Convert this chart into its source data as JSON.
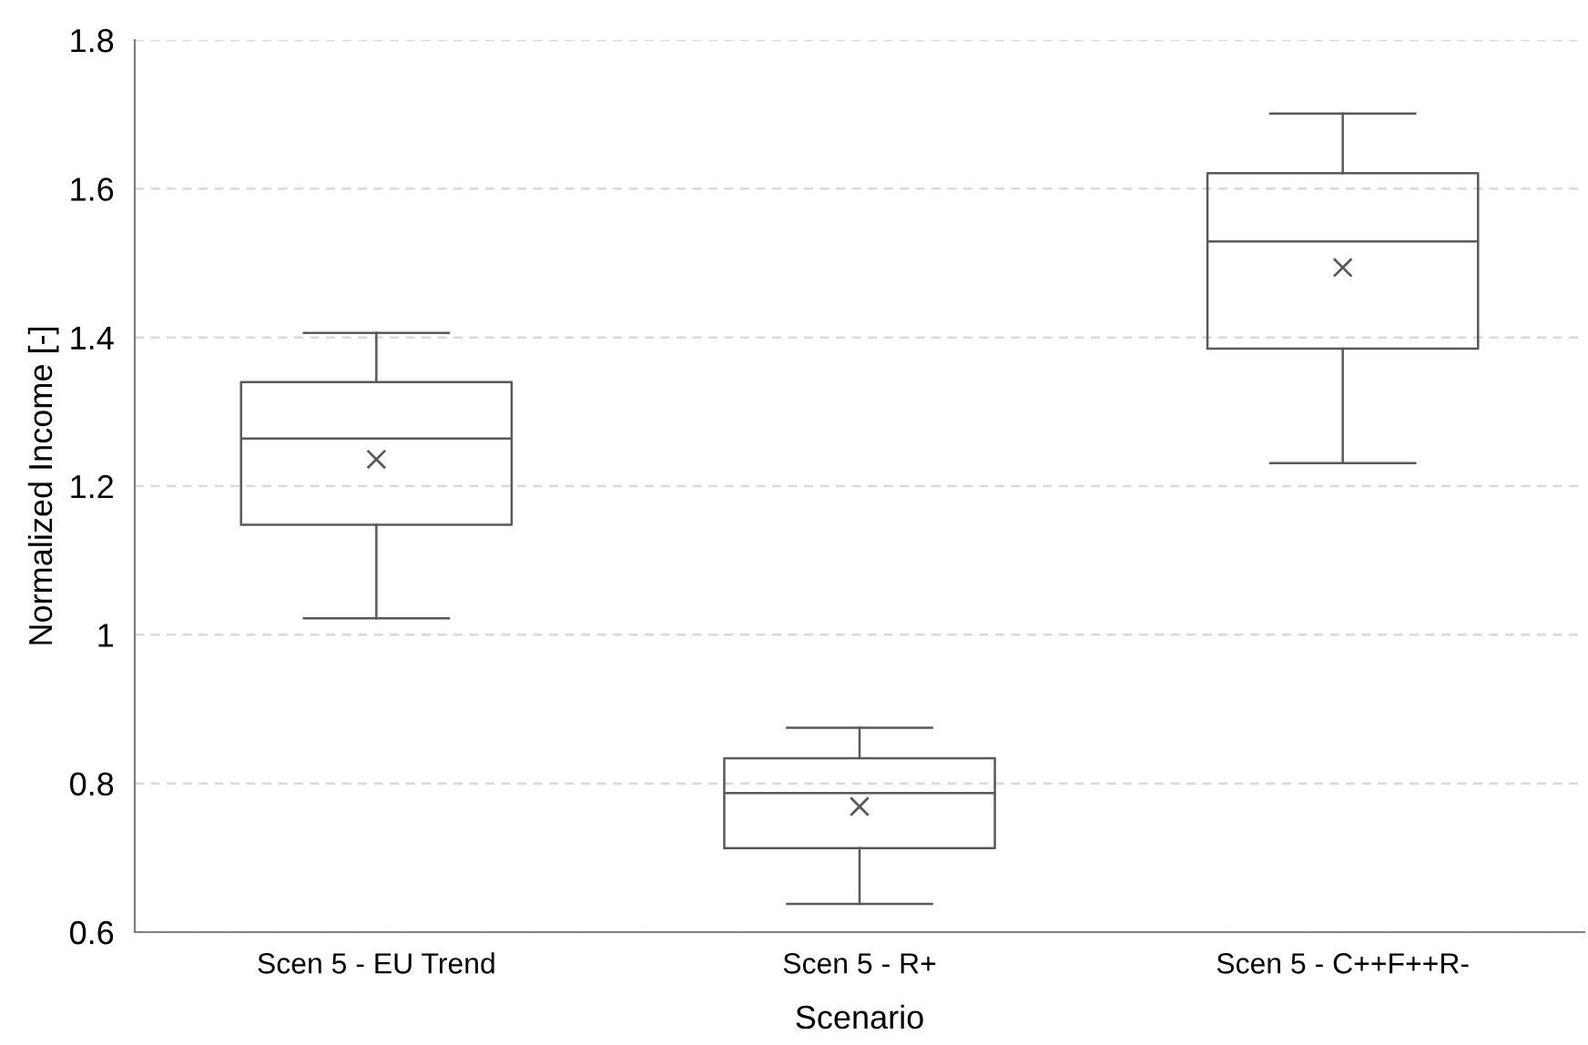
{
  "chart_data": {
    "type": "box",
    "xlabel": "Scenario",
    "ylabel": "Normalized Income [-]",
    "categories": [
      "Scen 5 - EU Trend",
      "Scen 5 - R+",
      "Scen 5 - C++F++R-"
    ],
    "boxes": [
      {
        "low": 1.022,
        "q1": 1.148,
        "median": 1.264,
        "q3": 1.34,
        "high": 1.406,
        "mean": 1.236
      },
      {
        "low": 0.638,
        "q1": 0.713,
        "median": 0.787,
        "q3": 0.834,
        "high": 0.875,
        "mean": 0.769
      },
      {
        "low": 1.231,
        "q1": 1.385,
        "median": 1.529,
        "q3": 1.621,
        "high": 1.701,
        "mean": 1.494
      }
    ],
    "color": "#595959",
    "ylim": [
      0.6,
      1.8
    ],
    "yticks": [
      0.6,
      0.8,
      1,
      1.2,
      1.4,
      1.6,
      1.8
    ],
    "grid": "y"
  }
}
